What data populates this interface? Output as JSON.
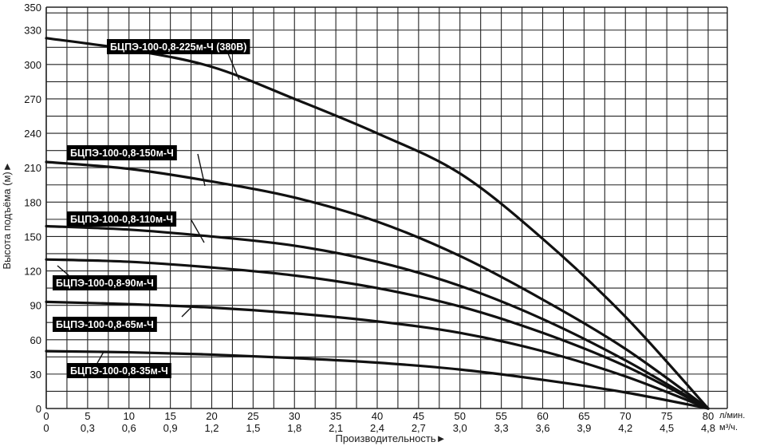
{
  "chart_data": {
    "type": "line",
    "title": "",
    "xlabel": "Производительность►",
    "ylabel": "Высота подъёма (м)►",
    "xlim": [
      0,
      80
    ],
    "ylim": [
      0,
      350
    ],
    "grid": true,
    "x_ticks": [
      "0",
      "5",
      "10",
      "15",
      "20",
      "25",
      "30",
      "35",
      "40",
      "45",
      "50",
      "55",
      "60",
      "65",
      "70",
      "75",
      "80"
    ],
    "x_ticks_secondary": [
      "0",
      "0,3",
      "0,6",
      "0,9",
      "1,2",
      "1,5",
      "1,8",
      "2,1",
      "2,4",
      "2,7",
      "3,0",
      "3,3",
      "3,6",
      "3,9",
      "4,2",
      "4,5",
      "4,8"
    ],
    "x_unit": "л/мин.",
    "x_unit_secondary": "м³/ч.",
    "y_ticks": [
      "0",
      "30",
      "60",
      "90",
      "120",
      "150",
      "180",
      "210",
      "240",
      "270",
      "300",
      "330",
      "350"
    ],
    "series": [
      {
        "name": "БЦПЭ-100-0,8-225м-Ч (380В)",
        "x": [
          0,
          10,
          20,
          30,
          40,
          50,
          60,
          70,
          80
        ],
        "values": [
          323,
          313,
          298,
          270,
          240,
          205,
          148,
          80,
          0
        ]
      },
      {
        "name": "БЦПЭ-100-0,8-150м-Ч",
        "x": [
          0,
          10,
          20,
          30,
          40,
          50,
          60,
          70,
          80
        ],
        "values": [
          215,
          209,
          198,
          184,
          163,
          133,
          95,
          52,
          0
        ]
      },
      {
        "name": "БЦПЭ-100-0,8-110м-Ч",
        "x": [
          0,
          10,
          20,
          30,
          40,
          50,
          60,
          70,
          80
        ],
        "values": [
          159,
          156,
          150,
          142,
          128,
          107,
          78,
          42,
          0
        ]
      },
      {
        "name": "БЦПЭ-100-0,8-90м-Ч",
        "x": [
          0,
          10,
          20,
          30,
          40,
          50,
          60,
          70,
          80
        ],
        "values": [
          130,
          128,
          123,
          116,
          105,
          89,
          66,
          37,
          0
        ]
      },
      {
        "name": "БЦПЭ-100-0,8-65м-Ч",
        "x": [
          0,
          10,
          20,
          30,
          40,
          50,
          60,
          70,
          80
        ],
        "values": [
          93,
          91,
          88,
          83,
          76,
          66,
          50,
          28,
          0
        ]
      },
      {
        "name": "БЦПЭ-100-0,8-35м-Ч",
        "x": [
          0,
          10,
          20,
          30,
          40,
          50,
          60,
          70,
          80
        ],
        "values": [
          50,
          49,
          47,
          44,
          40,
          34,
          25,
          14,
          0
        ]
      }
    ],
    "colors": {
      "line": "#111111",
      "grid": "#222222",
      "label_bg": "#000000",
      "label_text": "#ffffff"
    }
  }
}
